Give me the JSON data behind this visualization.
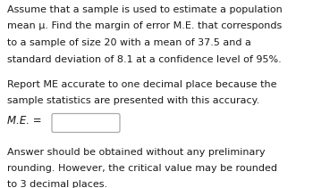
{
  "background_color": "#ffffff",
  "text_color": "#1a1a1a",
  "line1": "Assume that a sample is used to estimate a population",
  "line2": "mean μ. Find the margin of error M.E. that corresponds",
  "line3": "to a sample of size 20 with a mean of 37.5 and a",
  "line4": "standard deviation of 8.1 at a confidence level of 95%.",
  "line5": "Report ME accurate to one decimal place because the",
  "line6": "sample statistics are presented with this accuracy.",
  "me_label": "M.E. =",
  "line7": "Answer should be obtained without any preliminary",
  "line8": "rounding. However, the critical value may be rounded",
  "line9": "to 3 decimal places.",
  "font_size": 8.0,
  "me_font_size": 8.5
}
